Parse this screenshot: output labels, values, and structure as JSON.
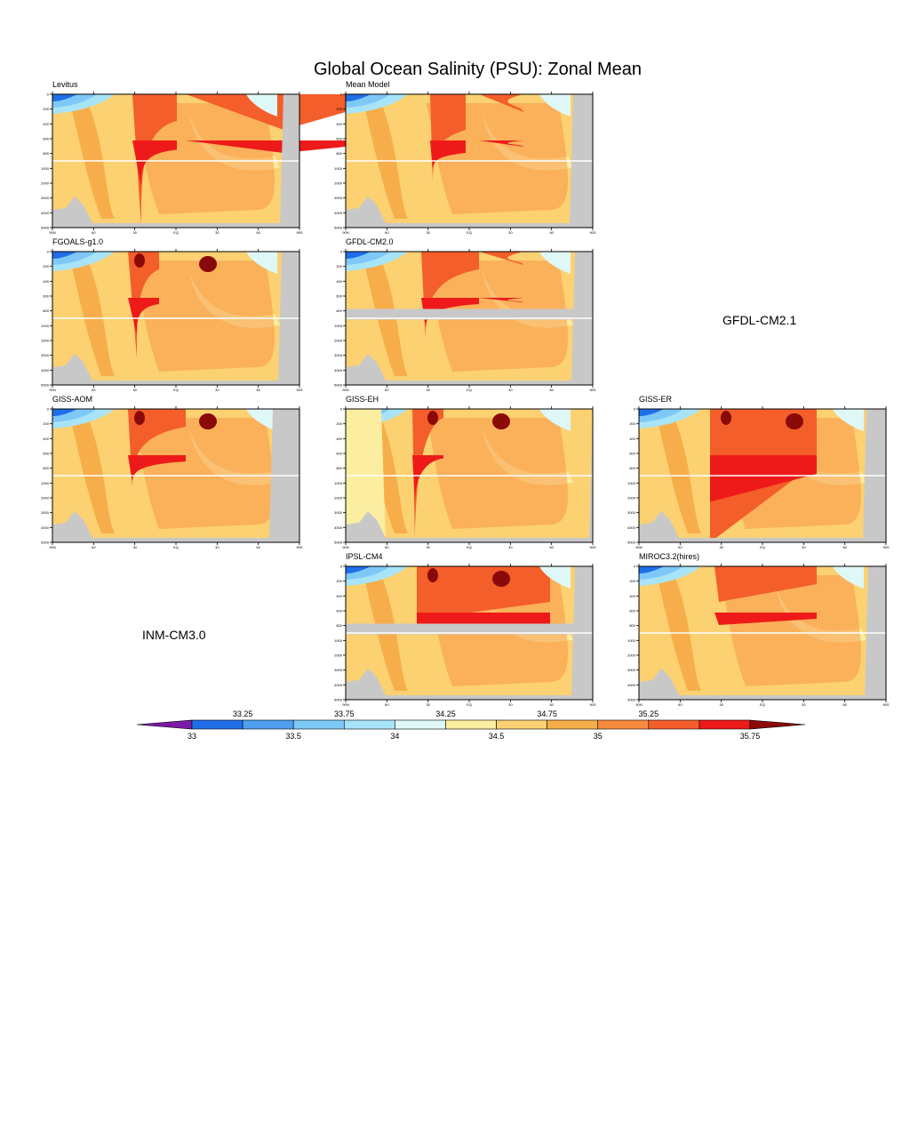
{
  "title": "Global Ocean Salinity (PSU): Zonal Mean",
  "x_tick_labels": [
    "90N",
    "60",
    "30",
    "EQ",
    "30",
    "60",
    "90S"
  ],
  "y_tick_labels": [
    "0",
    "200",
    "400",
    "600",
    "800",
    "1000",
    "2000",
    "3000",
    "4000",
    "5000"
  ],
  "panels": [
    {
      "name": "Levitus"
    },
    {
      "name": "Mean Model"
    },
    {
      "name": "FGOALS-g1.0"
    },
    {
      "name": "GFDL-CM2.0"
    },
    {
      "name": "GISS-AOM"
    },
    {
      "name": "GISS-EH"
    },
    {
      "name": "GISS-ER"
    },
    {
      "name": "IPSL-CM4"
    },
    {
      "name": "MIROC3.2(hires)"
    }
  ],
  "missing_panels": [
    "GFDL-CM2.1",
    "INM-CM3.0"
  ],
  "colorbar": {
    "upper_labels": [
      "33.25",
      "33.75",
      "34.25",
      "34.75",
      "35.25"
    ],
    "lower_labels": [
      "33",
      "33.5",
      "34",
      "34.5",
      "35",
      "35.75"
    ],
    "colors": [
      "#7a1aa6",
      "#1f6ee8",
      "#4f9ff0",
      "#7ec8f8",
      "#a8e4f7",
      "#def8f8",
      "#fbeea0",
      "#fbd172",
      "#f7ae4a",
      "#f88a3e",
      "#f45e2a",
      "#ee1a1a",
      "#8a0a0a"
    ]
  },
  "chart_data": {
    "type": "heatmap",
    "title": "Global Ocean Salinity (PSU): Zonal Mean",
    "xlabel": "",
    "ylabel": "",
    "x_ticks": [
      "90N",
      "60",
      "30",
      "EQ",
      "30",
      "60",
      "90S"
    ],
    "y_ticks": [
      0,
      200,
      400,
      600,
      800,
      1000,
      2000,
      3000,
      4000,
      5000
    ],
    "colorbar_levels": [
      33,
      33.25,
      33.5,
      33.75,
      34,
      34.25,
      34.5,
      34.75,
      35,
      35.25,
      35.75
    ],
    "panels": [
      "Levitus",
      "Mean Model",
      "FGOALS-g1.0",
      "GFDL-CM2.0",
      "GISS-AOM",
      "GISS-EH",
      "GISS-ER",
      "IPSL-CM4",
      "MIROC3.2(hires)"
    ],
    "approx_surface_max_psu": 35.75
  }
}
